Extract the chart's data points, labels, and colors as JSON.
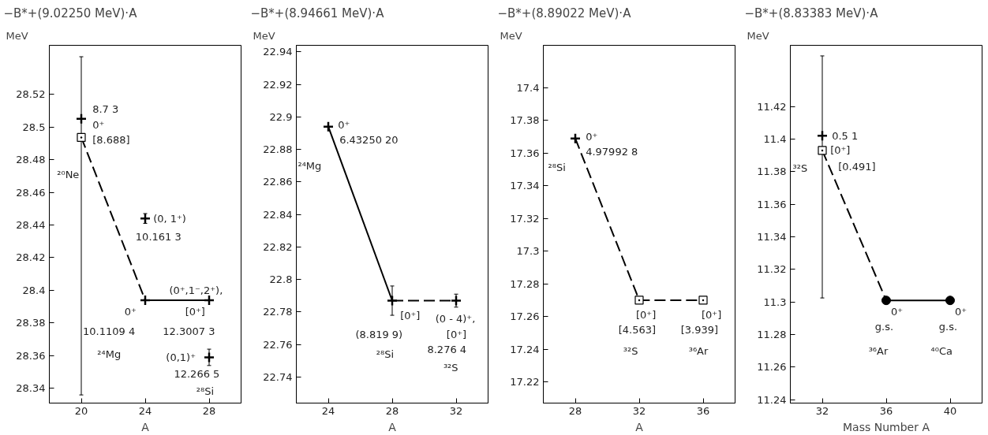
{
  "chart_data": [
    {
      "type": "scatter",
      "title": "−B*+(9.02250 MeV)·A",
      "ylabel": "MeV",
      "xlabel": "A",
      "xlim": [
        18,
        30
      ],
      "ylim": [
        28.331,
        28.55
      ],
      "xticks": [
        20,
        24,
        28
      ],
      "yticks": [
        28.34,
        28.36,
        28.38,
        28.4,
        28.42,
        28.44,
        28.46,
        28.48,
        28.5,
        28.52
      ],
      "series": [
        {
          "type": "line",
          "line_style": "dashed",
          "color": "#000000",
          "x": [
            20,
            24
          ],
          "values": [
            28.4936,
            28.394
          ]
        },
        {
          "type": "line",
          "line_style": "solid",
          "color": "#000000",
          "x": [
            24,
            28
          ],
          "values": [
            28.394,
            28.394
          ]
        },
        {
          "type": "scatter",
          "marker": "cross",
          "color": "#000000",
          "x": [
            20,
            24,
            24,
            28,
            28
          ],
          "values": [
            28.505,
            28.444,
            28.394,
            28.394,
            28.359
          ],
          "errors": [
            [
              28.336,
              28.543
            ],
            0.003,
            null,
            null,
            0.005
          ]
        },
        {
          "type": "scatter",
          "marker": "square",
          "color": "#000000",
          "x": [
            20
          ],
          "values": [
            28.4936
          ]
        }
      ],
      "annotations": [
        {
          "text": "8.7  3",
          "x": 20,
          "y": 28.505
        },
        {
          "text": "0⁺",
          "x": 20,
          "y": 28.505
        },
        {
          "text": "[8.688]",
          "x": 20,
          "y": 28.4936
        },
        "²⁰Ne",
        {
          "text": "(0, 1⁺)",
          "x": 24,
          "y": 28.444
        },
        {
          "text": "10.161  3",
          "x": 24,
          "y": 28.444
        },
        {
          "text": "(0⁺,1⁻,2⁺),",
          "x": 28,
          "y": 28.394
        },
        {
          "text": "0⁺",
          "x": 24,
          "y": 28.394
        },
        {
          "text": "[0⁺]",
          "x": 28,
          "y": 28.394
        },
        {
          "text": "10.1109  4",
          "x": 24,
          "y": 28.394
        },
        {
          "text": "12.3007  3",
          "x": 28,
          "y": 28.394
        },
        "²⁴Mg",
        {
          "text": "(0,1)⁺",
          "x": 28,
          "y": 28.359
        },
        {
          "text": "12.266  5",
          "x": 28,
          "y": 28.359
        },
        {
          "text": "²⁸Si",
          "x": 28,
          "y": 28.359
        }
      ]
    },
    {
      "type": "scatter",
      "title": "−B*+(8.94661 MeV)·A",
      "ylabel": "MeV",
      "xlabel": "A",
      "xlim": [
        22,
        34
      ],
      "ylim": [
        22.724,
        22.944
      ],
      "xticks": [
        24,
        28,
        32
      ],
      "yticks": [
        22.74,
        22.76,
        22.78,
        22.8,
        22.82,
        22.84,
        22.86,
        22.88,
        22.9,
        22.92,
        22.94
      ],
      "series": [
        {
          "type": "line",
          "line_style": "solid",
          "color": "#000000",
          "x": [
            24,
            28
          ],
          "values": [
            22.894,
            22.787
          ]
        },
        {
          "type": "line",
          "line_style": "dashed",
          "color": "#000000",
          "x": [
            28,
            32
          ],
          "values": [
            22.787,
            22.787
          ]
        },
        {
          "type": "scatter",
          "marker": "cross",
          "color": "#000000",
          "x": [
            24,
            28,
            32
          ],
          "values": [
            22.894,
            22.787,
            22.787
          ],
          "errors": [
            null,
            0.009,
            0.004
          ]
        }
      ],
      "annotations": [
        {
          "text": "0⁺",
          "x": 24,
          "y": 22.894
        },
        {
          "text": "6.43250  20",
          "x": 24,
          "y": 22.894
        },
        "²⁴Mg",
        {
          "text": "[0⁺]",
          "x": 28,
          "y": 22.787
        },
        {
          "text": "(0 - 4)⁺,",
          "x": 32,
          "y": 22.787
        },
        {
          "text": "(8.819  9)",
          "x": 28,
          "y": 22.787
        },
        {
          "text": "[0⁺]",
          "x": 32,
          "y": 22.787
        },
        "8.276  4",
        "²⁸Si",
        "³²S"
      ]
    },
    {
      "type": "scatter",
      "title": "−B*+(8.89022 MeV)·A",
      "ylabel": "MeV",
      "xlabel": "A",
      "xlim": [
        26,
        38
      ],
      "ylim": [
        17.207,
        17.426
      ],
      "xticks": [
        28,
        32,
        36
      ],
      "yticks": [
        17.22,
        17.24,
        17.26,
        17.28,
        17.3,
        17.32,
        17.34,
        17.36,
        17.38,
        17.4
      ],
      "series": [
        {
          "type": "line",
          "line_style": "dashed",
          "color": "#000000",
          "x": [
            28,
            32,
            36
          ],
          "values": [
            17.369,
            17.27,
            17.27
          ]
        },
        {
          "type": "scatter",
          "marker": "cross",
          "color": "#000000",
          "x": [
            28
          ],
          "values": [
            17.369
          ]
        },
        {
          "type": "scatter",
          "marker": "square",
          "color": "#000000",
          "x": [
            32,
            36
          ],
          "values": [
            17.27,
            17.27
          ]
        }
      ],
      "annotations": [
        {
          "text": "0⁺",
          "x": 28,
          "y": 17.369
        },
        {
          "text": "4.97992  8",
          "x": 28,
          "y": 17.369
        },
        {
          "text": "²⁸Si",
          "x": 28,
          "y": 17.369
        },
        {
          "text": "[0⁺]",
          "x": 32,
          "y": 17.27
        },
        {
          "text": "[4.563]",
          "x": 32,
          "y": 17.27
        },
        "³²S",
        {
          "text": "[0⁺]",
          "x": 36,
          "y": 17.27
        },
        {
          "text": "[3.939]",
          "x": 36,
          "y": 17.27
        },
        "³⁶Ar"
      ]
    },
    {
      "type": "scatter",
      "title": "−B*+(8.83383 MeV)·A",
      "ylabel": "MeV",
      "xlabel": "Mass Number A",
      "xlim": [
        30,
        42
      ],
      "ylim": [
        11.238,
        11.4575
      ],
      "xticks": [
        32,
        36,
        40
      ],
      "yticks": [
        11.24,
        11.26,
        11.28,
        11.3,
        11.32,
        11.34,
        11.36,
        11.38,
        11.4,
        11.42
      ],
      "series": [
        {
          "type": "line",
          "line_style": "dashed",
          "color": "#000000",
          "x": [
            32,
            36
          ],
          "values": [
            11.393,
            11.301
          ]
        },
        {
          "type": "line",
          "line_style": "solid",
          "color": "#000000",
          "x": [
            36,
            40
          ],
          "values": [
            11.301,
            11.301
          ]
        },
        {
          "type": "scatter",
          "marker": "cross",
          "color": "#000000",
          "x": [
            32
          ],
          "values": [
            11.402
          ],
          "errors": [
            [
              11.3025,
              11.451
            ]
          ]
        },
        {
          "type": "scatter",
          "marker": "square",
          "color": "#000000",
          "x": [
            32
          ],
          "values": [
            11.393
          ]
        },
        {
          "type": "scatter",
          "marker": "circle",
          "color": "#000000",
          "x": [
            36,
            40
          ],
          "values": [
            11.301,
            11.301
          ]
        }
      ],
      "annotations": [
        {
          "text": "0.5  1",
          "x": 32,
          "y": 11.402
        },
        {
          "text": "[0⁺]",
          "x": 32,
          "y": 11.393
        },
        {
          "text": "[0.491]",
          "x": 32,
          "y": 11.393
        },
        {
          "text": "³²S",
          "x": 32,
          "y": 11.393
        },
        {
          "text": "0⁺",
          "x": 36,
          "y": 11.301
        },
        {
          "text": "g.s.",
          "x": 36,
          "y": 11.301
        },
        "³⁶Ar",
        {
          "text": "0⁺",
          "x": 40,
          "y": 11.301
        },
        {
          "text": "g.s.",
          "x": 40,
          "y": 11.301
        },
        "⁴⁰Ca"
      ]
    }
  ]
}
